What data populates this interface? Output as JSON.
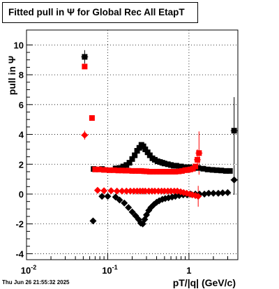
{
  "title": "Fitted pull in  Ψ   for Global Rec All EtapT",
  "timestamp": "Thu Jun 26 21:55:32 2025",
  "chart_data": {
    "type": "scatter",
    "title": "Fitted pull in  Ψ   for Global Rec All EtapT",
    "xlabel": "pT/|q| (GeV/c)",
    "ylabel": "pull in  Ψ",
    "xscale": "log",
    "xlim": [
      0.01,
      4
    ],
    "ylim": [
      -4.4,
      11
    ],
    "x_ticks": [
      0.01,
      0.1,
      1
    ],
    "x_tick_labels": [
      "10^-2",
      "10^-1",
      "1"
    ],
    "y_ticks": [
      -4,
      -2,
      0,
      2,
      4,
      6,
      8,
      10
    ],
    "grid": true,
    "colors": {
      "black": "#000000",
      "red": "#ff0000"
    },
    "series": [
      {
        "color": "#000000",
        "marker": "square",
        "points": [
          [
            0.052,
            9.2
          ],
          [
            0.067,
            1.68
          ],
          [
            0.085,
            1.68
          ],
          [
            0.125,
            1.72
          ],
          [
            0.14,
            1.75
          ],
          [
            0.155,
            1.85
          ],
          [
            0.17,
            1.95
          ],
          [
            0.185,
            2.1
          ],
          [
            0.2,
            2.35
          ],
          [
            0.215,
            2.6
          ],
          [
            0.23,
            2.9
          ],
          [
            0.245,
            3.1
          ],
          [
            0.26,
            3.3
          ],
          [
            0.275,
            3.2
          ],
          [
            0.29,
            3.0
          ],
          [
            0.31,
            2.8
          ],
          [
            0.33,
            2.6
          ],
          [
            0.355,
            2.4
          ],
          [
            0.38,
            2.3
          ],
          [
            0.41,
            2.2
          ],
          [
            0.44,
            2.15
          ],
          [
            0.47,
            2.1
          ],
          [
            0.5,
            2.05
          ],
          [
            0.55,
            2.0
          ],
          [
            0.6,
            1.95
          ],
          [
            0.65,
            1.9
          ],
          [
            0.7,
            1.9
          ],
          [
            0.8,
            1.85
          ],
          [
            0.9,
            1.8
          ],
          [
            1.0,
            1.8
          ],
          [
            1.15,
            1.75
          ],
          [
            1.3,
            1.75
          ],
          [
            1.5,
            1.7
          ],
          [
            1.7,
            1.65
          ],
          [
            1.95,
            1.62
          ],
          [
            2.2,
            1.6
          ],
          [
            2.5,
            1.58
          ],
          [
            2.85,
            1.55
          ],
          [
            3.2,
            1.55
          ],
          [
            3.6,
            4.25
          ]
        ]
      },
      {
        "color": "#ff0000",
        "marker": "square",
        "points": [
          [
            0.052,
            8.55
          ],
          [
            0.064,
            5.1
          ],
          [
            0.07,
            1.65
          ],
          [
            0.078,
            1.65
          ],
          [
            0.09,
            1.62
          ],
          [
            0.105,
            1.6
          ],
          [
            0.12,
            1.6
          ],
          [
            0.135,
            1.58
          ],
          [
            0.15,
            1.58
          ],
          [
            0.165,
            1.57
          ],
          [
            0.18,
            1.57
          ],
          [
            0.2,
            1.55
          ],
          [
            0.22,
            1.55
          ],
          [
            0.24,
            1.55
          ],
          [
            0.26,
            1.55
          ],
          [
            0.28,
            1.53
          ],
          [
            0.3,
            1.52
          ],
          [
            0.33,
            1.5
          ],
          [
            0.36,
            1.5
          ],
          [
            0.4,
            1.5
          ],
          [
            0.44,
            1.5
          ],
          [
            0.48,
            1.5
          ],
          [
            0.52,
            1.5
          ],
          [
            0.57,
            1.5
          ],
          [
            0.62,
            1.5
          ],
          [
            0.68,
            1.5
          ],
          [
            0.75,
            1.52
          ],
          [
            0.82,
            1.55
          ],
          [
            0.9,
            1.6
          ],
          [
            0.97,
            1.62
          ],
          [
            1.04,
            1.65
          ],
          [
            1.12,
            1.7
          ],
          [
            1.2,
            1.85
          ],
          [
            1.27,
            2.3
          ],
          [
            1.33,
            2.75
          ]
        ]
      },
      {
        "color": "#000000",
        "marker": "diamond",
        "points": [
          [
            0.066,
            -1.8
          ],
          [
            0.085,
            -0.15
          ],
          [
            0.1,
            -0.15
          ],
          [
            0.125,
            -0.2
          ],
          [
            0.14,
            -0.4
          ],
          [
            0.16,
            -0.6
          ],
          [
            0.18,
            -0.9
          ],
          [
            0.2,
            -1.2
          ],
          [
            0.22,
            -1.45
          ],
          [
            0.24,
            -1.7
          ],
          [
            0.255,
            -1.95
          ],
          [
            0.27,
            -2.0
          ],
          [
            0.285,
            -1.7
          ],
          [
            0.3,
            -1.4
          ],
          [
            0.32,
            -1.1
          ],
          [
            0.34,
            -0.9
          ],
          [
            0.37,
            -0.7
          ],
          [
            0.4,
            -0.55
          ],
          [
            0.43,
            -0.45
          ],
          [
            0.47,
            -0.35
          ],
          [
            0.51,
            -0.3
          ],
          [
            0.56,
            -0.25
          ],
          [
            0.62,
            -0.2
          ],
          [
            0.68,
            -0.15
          ],
          [
            0.76,
            -0.1
          ],
          [
            0.85,
            -0.05
          ],
          [
            0.95,
            -0.05
          ],
          [
            1.05,
            0.0
          ],
          [
            1.2,
            0.0
          ],
          [
            1.35,
            0.0
          ],
          [
            1.55,
            0.0
          ],
          [
            1.75,
            0.05
          ],
          [
            2.0,
            0.05
          ],
          [
            2.3,
            0.05
          ],
          [
            2.6,
            0.08
          ],
          [
            3.0,
            0.1
          ],
          [
            3.6,
            0.95
          ]
        ]
      },
      {
        "color": "#ff0000",
        "marker": "diamond",
        "points": [
          [
            0.052,
            3.95
          ],
          [
            0.075,
            0.25
          ],
          [
            0.09,
            0.22
          ],
          [
            0.11,
            0.22
          ],
          [
            0.13,
            0.2
          ],
          [
            0.15,
            0.2
          ],
          [
            0.17,
            0.2
          ],
          [
            0.19,
            0.2
          ],
          [
            0.21,
            0.2
          ],
          [
            0.23,
            0.2
          ],
          [
            0.25,
            0.2
          ],
          [
            0.27,
            0.2
          ],
          [
            0.29,
            0.2
          ],
          [
            0.32,
            0.2
          ],
          [
            0.35,
            0.2
          ],
          [
            0.38,
            0.2
          ],
          [
            0.42,
            0.2
          ],
          [
            0.46,
            0.2
          ],
          [
            0.5,
            0.2
          ],
          [
            0.55,
            0.2
          ],
          [
            0.6,
            0.2
          ],
          [
            0.66,
            0.2
          ],
          [
            0.72,
            0.2
          ],
          [
            0.79,
            0.15
          ],
          [
            0.86,
            0.1
          ],
          [
            0.94,
            0.05
          ],
          [
            1.02,
            0.0
          ],
          [
            1.1,
            -0.05
          ],
          [
            1.2,
            -0.1
          ],
          [
            1.3,
            -0.15
          ]
        ]
      }
    ],
    "error_bars": [
      {
        "x": 3.6,
        "y": 4.25,
        "err": 2.25,
        "color": "#000000"
      },
      {
        "x": 3.6,
        "y": 0.95,
        "err": 1.0,
        "color": "#000000"
      },
      {
        "x": 1.33,
        "y": 2.75,
        "err": 1.45,
        "color": "#ff0000"
      },
      {
        "x": 1.27,
        "y": 2.3,
        "err": 0.7,
        "color": "#ff0000"
      },
      {
        "x": 1.3,
        "y": -0.15,
        "err": 0.7,
        "color": "#ff0000"
      },
      {
        "x": 0.052,
        "y": 9.2,
        "err": 0.45,
        "color": "#000000"
      },
      {
        "x": 0.052,
        "y": 3.95,
        "err": 0.3,
        "color": "#ff0000"
      }
    ]
  }
}
